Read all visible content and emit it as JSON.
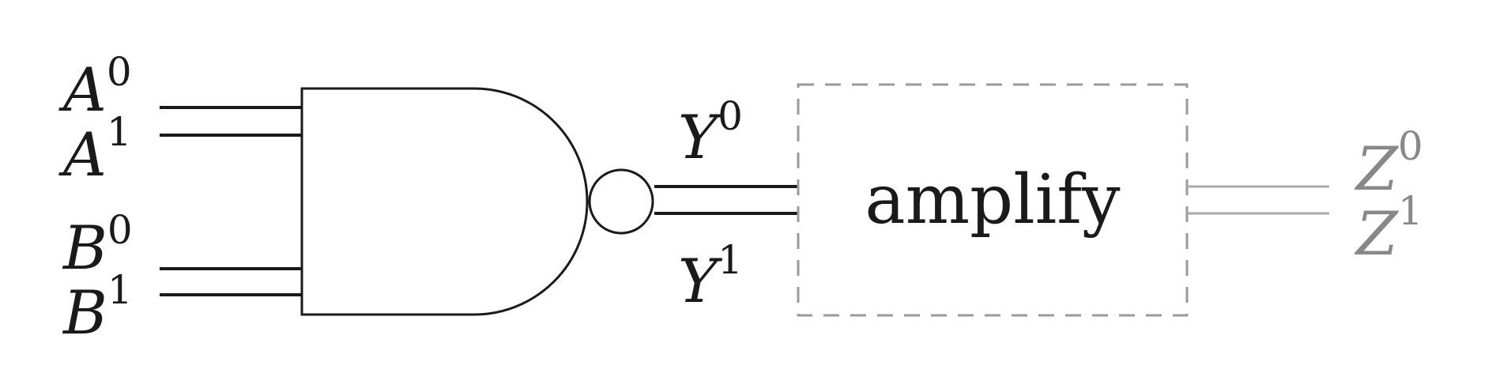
{
  "colors": {
    "ink": "#1a1a1a",
    "muted": "#888888",
    "dashed_border": "#9a9a9a"
  },
  "inputs": {
    "a0": {
      "letter": "A",
      "sup": "0"
    },
    "a1": {
      "letter": "A",
      "sup": "1"
    },
    "b0": {
      "letter": "B",
      "sup": "0"
    },
    "b1": {
      "letter": "B",
      "sup": "1"
    }
  },
  "outputs": {
    "y0": {
      "letter": "Y",
      "sup": "0"
    },
    "y1": {
      "letter": "Y",
      "sup": "1"
    }
  },
  "block": {
    "label": "amplify"
  },
  "final_outputs": {
    "z0": {
      "letter": "Z",
      "sup": "0"
    },
    "z1": {
      "letter": "Z",
      "sup": "1"
    }
  }
}
